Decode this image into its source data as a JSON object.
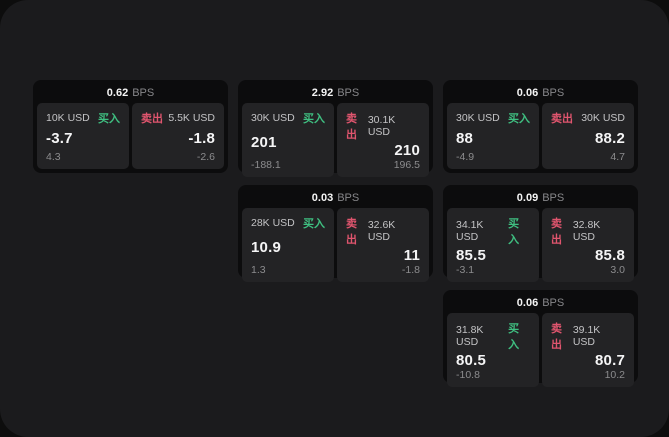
{
  "labels": {
    "bps_unit": "BPS",
    "buy": "买入",
    "sell": "卖出"
  },
  "colors": {
    "outer_background": "#0d0d0d",
    "panel_background": "#1b1b1d",
    "card_background": "#0c0c0d",
    "tile_background": "#232325",
    "buy_green": "#3fbf81",
    "sell_red": "#e0556e",
    "primary_text": "#f5f5f6",
    "muted_text": "#8c8c8e"
  },
  "cards": [
    {
      "bps": "0.62",
      "buy": {
        "amount": "10K USD",
        "value": "-3.7",
        "sub": "4.3"
      },
      "sell": {
        "amount": "5.5K USD",
        "value": "-1.8",
        "sub": "-2.6"
      }
    },
    {
      "bps": "2.92",
      "buy": {
        "amount": "30K USD",
        "value": "201",
        "sub": "-188.1"
      },
      "sell": {
        "amount": "30.1K USD",
        "value": "210",
        "sub": "196.5"
      }
    },
    {
      "bps": "0.06",
      "buy": {
        "amount": "30K USD",
        "value": "88",
        "sub": "-4.9"
      },
      "sell": {
        "amount": "30K USD",
        "value": "88.2",
        "sub": "4.7"
      }
    },
    {
      "bps": "0.03",
      "buy": {
        "amount": "28K USD",
        "value": "10.9",
        "sub": "1.3"
      },
      "sell": {
        "amount": "32.6K USD",
        "value": "11",
        "sub": "-1.8"
      }
    },
    {
      "bps": "0.09",
      "buy": {
        "amount": "34.1K USD",
        "value": "85.5",
        "sub": "-3.1"
      },
      "sell": {
        "amount": "32.8K USD",
        "value": "85.8",
        "sub": "3.0"
      }
    },
    {
      "bps": "0.06",
      "buy": {
        "amount": "31.8K USD",
        "value": "80.5",
        "sub": "-10.8"
      },
      "sell": {
        "amount": "39.1K USD",
        "value": "80.7",
        "sub": "10.2"
      }
    }
  ]
}
